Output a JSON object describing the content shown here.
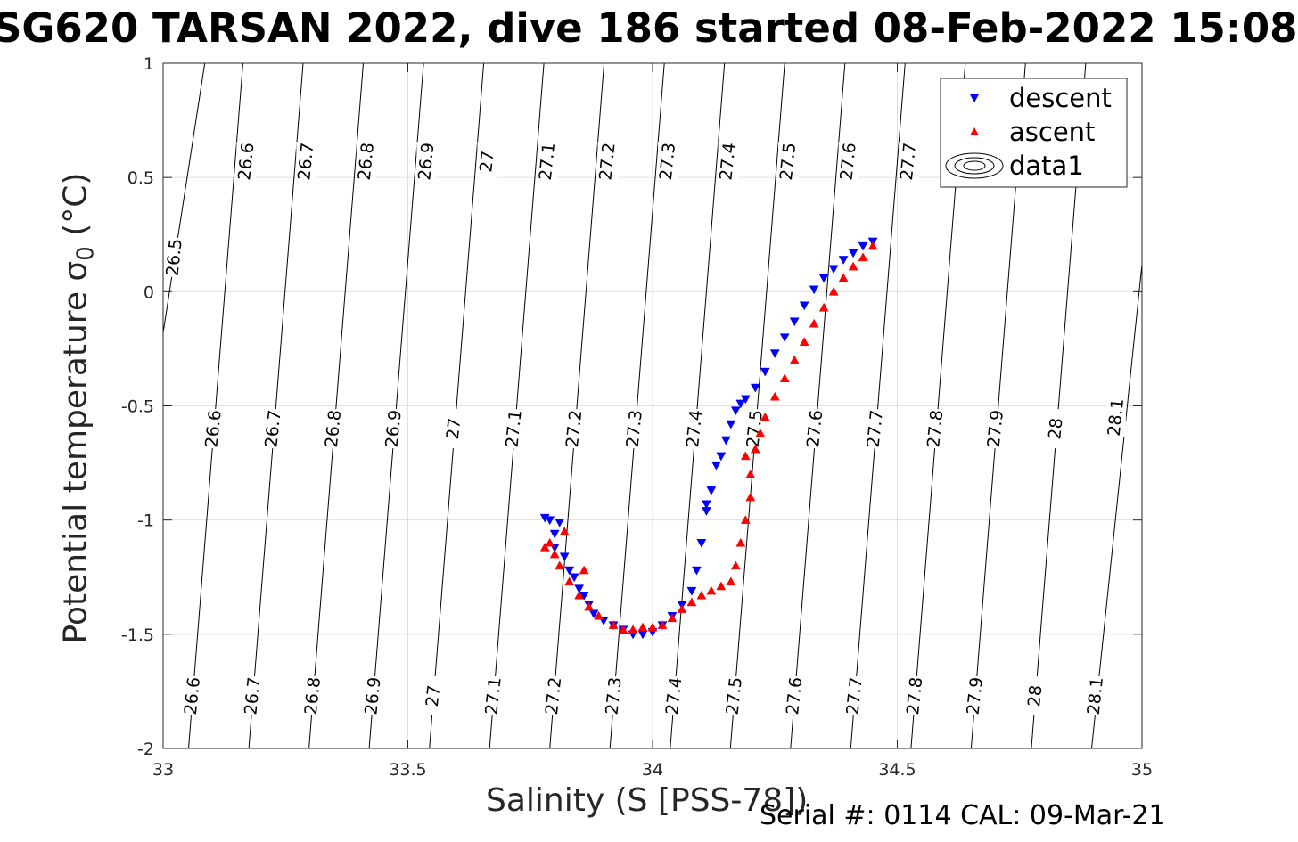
{
  "title": "SG620 TARSAN 2022, dive 186 started 08-Feb-2022 15:08",
  "footer": "Serial #: 0114  CAL: 09-Mar-21",
  "chart_data": {
    "type": "scatter",
    "title": "SG620 TARSAN 2022, dive 186 started 08-Feb-2022 15:08",
    "xlabel": "Salinity (S [PSS-78])",
    "ylabel_main": "Potential temperature ",
    "ylabel_symbol": "σ",
    "ylabel_sub": "0",
    "ylabel_unit": " (°C)",
    "xlim": [
      33,
      35
    ],
    "ylim": [
      -2,
      1
    ],
    "xticks": [
      33,
      33.5,
      34,
      34.5,
      35
    ],
    "xtick_labels": [
      "33",
      "33.5",
      "34",
      "34.5",
      "35"
    ],
    "yticks": [
      -2,
      -1.5,
      -1,
      -0.5,
      0,
      0.5,
      1
    ],
    "ytick_labels": [
      "-2",
      "-1.5",
      "-1",
      "-0.5",
      "0",
      "0.5",
      "1"
    ],
    "grid": true,
    "legend_position": "top-right",
    "legend": [
      {
        "label": "descent",
        "marker": "triangle-down",
        "color": "#0000ff"
      },
      {
        "label": "ascent",
        "marker": "triangle-up",
        "color": "#ff0000"
      },
      {
        "label": "data1",
        "marker": "contour",
        "color": "#000000"
      }
    ],
    "contour_levels": [
      26.5,
      26.6,
      26.7,
      26.8,
      26.9,
      27,
      27.1,
      27.2,
      27.3,
      27.4,
      27.5,
      27.6,
      27.7,
      27.8,
      27.9,
      28,
      28.1
    ],
    "contour_level_labels": [
      "26.5",
      "26.6",
      "26.7",
      "26.8",
      "26.9",
      "27",
      "27.1",
      "27.2",
      "27.3",
      "27.4",
      "27.5",
      "27.6",
      "27.7",
      "27.8",
      "27.9",
      "28",
      "28.1"
    ],
    "contour_lines": [
      {
        "level": "26.5",
        "points": [
          [
            33.0,
            -0.18
          ],
          [
            33.085,
            1.0
          ]
        ]
      },
      {
        "level": "26.6",
        "points": [
          [
            33.052,
            -2.0
          ],
          [
            33.163,
            1.0
          ]
        ]
      },
      {
        "level": "26.7",
        "points": [
          [
            33.175,
            -2.0
          ],
          [
            33.286,
            1.0
          ]
        ]
      },
      {
        "level": "26.8",
        "points": [
          [
            33.298,
            -2.0
          ],
          [
            33.409,
            1.0
          ]
        ]
      },
      {
        "level": "26.9",
        "points": [
          [
            33.421,
            -2.0
          ],
          [
            33.532,
            1.0
          ]
        ]
      },
      {
        "level": "27",
        "points": [
          [
            33.544,
            -2.0
          ],
          [
            33.655,
            1.0
          ]
        ]
      },
      {
        "level": "27.1",
        "points": [
          [
            33.667,
            -2.0
          ],
          [
            33.778,
            1.0
          ]
        ]
      },
      {
        "level": "27.2",
        "points": [
          [
            33.79,
            -2.0
          ],
          [
            33.901,
            1.0
          ]
        ]
      },
      {
        "level": "27.3",
        "points": [
          [
            33.913,
            -2.0
          ],
          [
            34.024,
            1.0
          ]
        ]
      },
      {
        "level": "27.4",
        "points": [
          [
            34.036,
            -2.0
          ],
          [
            34.147,
            1.0
          ]
        ]
      },
      {
        "level": "27.5",
        "points": [
          [
            34.159,
            -2.0
          ],
          [
            34.27,
            1.0
          ]
        ]
      },
      {
        "level": "27.6",
        "points": [
          [
            34.282,
            -2.0
          ],
          [
            34.393,
            1.0
          ]
        ]
      },
      {
        "level": "27.7",
        "points": [
          [
            34.405,
            -2.0
          ],
          [
            34.516,
            1.0
          ]
        ]
      },
      {
        "level": "27.8",
        "points": [
          [
            34.528,
            -2.0
          ],
          [
            34.639,
            1.0
          ]
        ]
      },
      {
        "level": "27.9",
        "points": [
          [
            34.651,
            -2.0
          ],
          [
            34.762,
            1.0
          ]
        ]
      },
      {
        "level": "28",
        "points": [
          [
            34.774,
            -2.0
          ],
          [
            34.885,
            1.0
          ]
        ]
      },
      {
        "level": "28.1",
        "points": [
          [
            34.897,
            -2.0
          ],
          [
            35.0,
            0.12
          ]
        ]
      }
    ],
    "contour_labels": [
      {
        "text": "26.5",
        "x": 33.023,
        "y": 0.15
      },
      {
        "text": "26.6",
        "x": 33.17,
        "y": 0.57
      },
      {
        "text": "26.7",
        "x": 33.292,
        "y": 0.57
      },
      {
        "text": "26.8",
        "x": 33.415,
        "y": 0.57
      },
      {
        "text": "26.9",
        "x": 33.538,
        "y": 0.57
      },
      {
        "text": "27",
        "x": 33.662,
        "y": 0.57
      },
      {
        "text": "27.1",
        "x": 33.785,
        "y": 0.57
      },
      {
        "text": "27.2",
        "x": 33.908,
        "y": 0.57
      },
      {
        "text": "27.3",
        "x": 34.031,
        "y": 0.57
      },
      {
        "text": "27.4",
        "x": 34.154,
        "y": 0.57
      },
      {
        "text": "27.5",
        "x": 34.277,
        "y": 0.57
      },
      {
        "text": "27.6",
        "x": 34.4,
        "y": 0.57
      },
      {
        "text": "27.7",
        "x": 34.523,
        "y": 0.57
      },
      {
        "text": "26.6",
        "x": 33.103,
        "y": -0.6
      },
      {
        "text": "26.7",
        "x": 33.225,
        "y": -0.6
      },
      {
        "text": "26.8",
        "x": 33.348,
        "y": -0.6
      },
      {
        "text": "26.9",
        "x": 33.471,
        "y": -0.6
      },
      {
        "text": "27",
        "x": 33.594,
        "y": -0.6
      },
      {
        "text": "27.1",
        "x": 33.717,
        "y": -0.6
      },
      {
        "text": "27.2",
        "x": 33.84,
        "y": -0.6
      },
      {
        "text": "27.3",
        "x": 33.963,
        "y": -0.6
      },
      {
        "text": "27.4",
        "x": 34.086,
        "y": -0.6
      },
      {
        "text": "27.5",
        "x": 34.209,
        "y": -0.6
      },
      {
        "text": "27.6",
        "x": 34.332,
        "y": -0.6
      },
      {
        "text": "27.7",
        "x": 34.455,
        "y": -0.6
      },
      {
        "text": "27.8",
        "x": 34.578,
        "y": -0.6
      },
      {
        "text": "27.9",
        "x": 34.701,
        "y": -0.6
      },
      {
        "text": "28",
        "x": 34.824,
        "y": -0.6
      },
      {
        "text": "28.1",
        "x": 34.947,
        "y": -0.55
      },
      {
        "text": "26.6",
        "x": 33.06,
        "y": -1.77
      },
      {
        "text": "26.7",
        "x": 33.183,
        "y": -1.77
      },
      {
        "text": "26.8",
        "x": 33.306,
        "y": -1.77
      },
      {
        "text": "26.9",
        "x": 33.429,
        "y": -1.77
      },
      {
        "text": "27",
        "x": 33.552,
        "y": -1.77
      },
      {
        "text": "27.1",
        "x": 33.675,
        "y": -1.77
      },
      {
        "text": "27.2",
        "x": 33.798,
        "y": -1.77
      },
      {
        "text": "27.3",
        "x": 33.921,
        "y": -1.77
      },
      {
        "text": "27.4",
        "x": 34.044,
        "y": -1.77
      },
      {
        "text": "27.5",
        "x": 34.167,
        "y": -1.77
      },
      {
        "text": "27.6",
        "x": 34.29,
        "y": -1.77
      },
      {
        "text": "27.7",
        "x": 34.413,
        "y": -1.77
      },
      {
        "text": "27.8",
        "x": 34.536,
        "y": -1.77
      },
      {
        "text": "27.9",
        "x": 34.659,
        "y": -1.77
      },
      {
        "text": "28",
        "x": 34.782,
        "y": -1.77
      },
      {
        "text": "28.1",
        "x": 34.905,
        "y": -1.77
      }
    ],
    "series": [
      {
        "name": "descent",
        "color": "#0000ff",
        "marker": "triangle-down",
        "x": [
          33.78,
          33.79,
          33.8,
          33.81,
          33.8,
          33.82,
          33.83,
          33.84,
          33.85,
          33.86,
          33.87,
          33.88,
          33.9,
          33.92,
          33.94,
          33.96,
          33.98,
          34.0,
          34.02,
          34.04,
          34.06,
          34.08,
          34.09,
          34.1,
          34.11,
          34.12,
          34.11,
          34.13,
          34.14,
          34.15,
          34.16,
          34.17,
          34.18,
          34.19,
          34.21,
          34.23,
          34.25,
          34.27,
          34.29,
          34.31,
          34.33,
          34.35,
          34.37,
          34.39,
          34.41,
          34.43,
          34.45
        ],
        "y": [
          -0.99,
          -1.0,
          -1.06,
          -1.01,
          -1.12,
          -1.16,
          -1.22,
          -1.25,
          -1.3,
          -1.33,
          -1.37,
          -1.41,
          -1.44,
          -1.46,
          -1.48,
          -1.5,
          -1.5,
          -1.49,
          -1.46,
          -1.42,
          -1.37,
          -1.31,
          -1.22,
          -1.1,
          -0.93,
          -0.87,
          -0.96,
          -0.76,
          -0.72,
          -0.65,
          -0.58,
          -0.52,
          -0.49,
          -0.47,
          -0.42,
          -0.35,
          -0.27,
          -0.2,
          -0.13,
          -0.06,
          0.01,
          0.06,
          0.1,
          0.14,
          0.17,
          0.2,
          0.22
        ]
      },
      {
        "name": "ascent",
        "color": "#ff0000",
        "marker": "triangle-up",
        "x": [
          33.78,
          33.79,
          33.8,
          33.81,
          33.83,
          33.85,
          33.87,
          33.89,
          33.92,
          33.94,
          33.96,
          33.98,
          34.0,
          34.02,
          34.04,
          34.06,
          34.08,
          34.1,
          34.12,
          34.14,
          34.16,
          34.17,
          34.18,
          34.19,
          34.2,
          34.2,
          34.21,
          34.22,
          34.19,
          34.23,
          34.25,
          34.27,
          34.29,
          34.31,
          34.33,
          34.35,
          34.37,
          34.39,
          34.41,
          34.43,
          34.45,
          33.86,
          33.82
        ],
        "y": [
          -1.12,
          -1.1,
          -1.15,
          -1.2,
          -1.27,
          -1.33,
          -1.38,
          -1.42,
          -1.46,
          -1.48,
          -1.48,
          -1.47,
          -1.47,
          -1.46,
          -1.43,
          -1.39,
          -1.36,
          -1.33,
          -1.31,
          -1.29,
          -1.27,
          -1.2,
          -1.1,
          -1.0,
          -0.9,
          -0.8,
          -0.69,
          -0.62,
          -0.72,
          -0.55,
          -0.46,
          -0.38,
          -0.3,
          -0.22,
          -0.14,
          -0.07,
          0.0,
          0.06,
          0.11,
          0.15,
          0.2,
          -1.22,
          -1.05
        ]
      }
    ]
  }
}
